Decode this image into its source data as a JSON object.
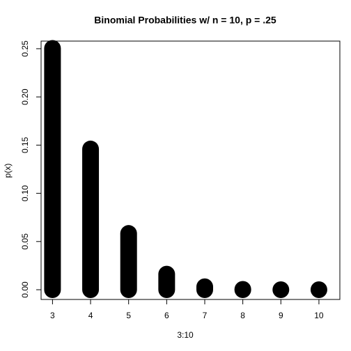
{
  "chart_data": {
    "type": "lollipop-h",
    "title": "Binomial Probabilities w/ n = 10, p = .25",
    "xlabel": "3:10",
    "ylabel": "p(x)",
    "x": [
      3,
      4,
      5,
      6,
      7,
      8,
      9,
      10
    ],
    "values": [
      0.2503,
      0.146,
      0.0584,
      0.0162,
      0.0031,
      0.0004,
      0,
      0
    ],
    "color": "#000000",
    "xlim": [
      2.7,
      10.55
    ],
    "xticks": [
      3,
      4,
      5,
      6,
      7,
      8,
      9,
      10
    ],
    "ylim": [
      -0.0101,
      0.2579
    ],
    "yticks": [
      {
        "value": 0,
        "label": "0.00"
      },
      {
        "value": 0.05,
        "label": "0.05"
      },
      {
        "value": 0.1,
        "label": "0.10"
      },
      {
        "value": 0.15,
        "label": "0.15"
      },
      {
        "value": 0.2,
        "label": "0.20"
      },
      {
        "value": 0.25,
        "label": "0.25"
      }
    ],
    "grid": false
  }
}
